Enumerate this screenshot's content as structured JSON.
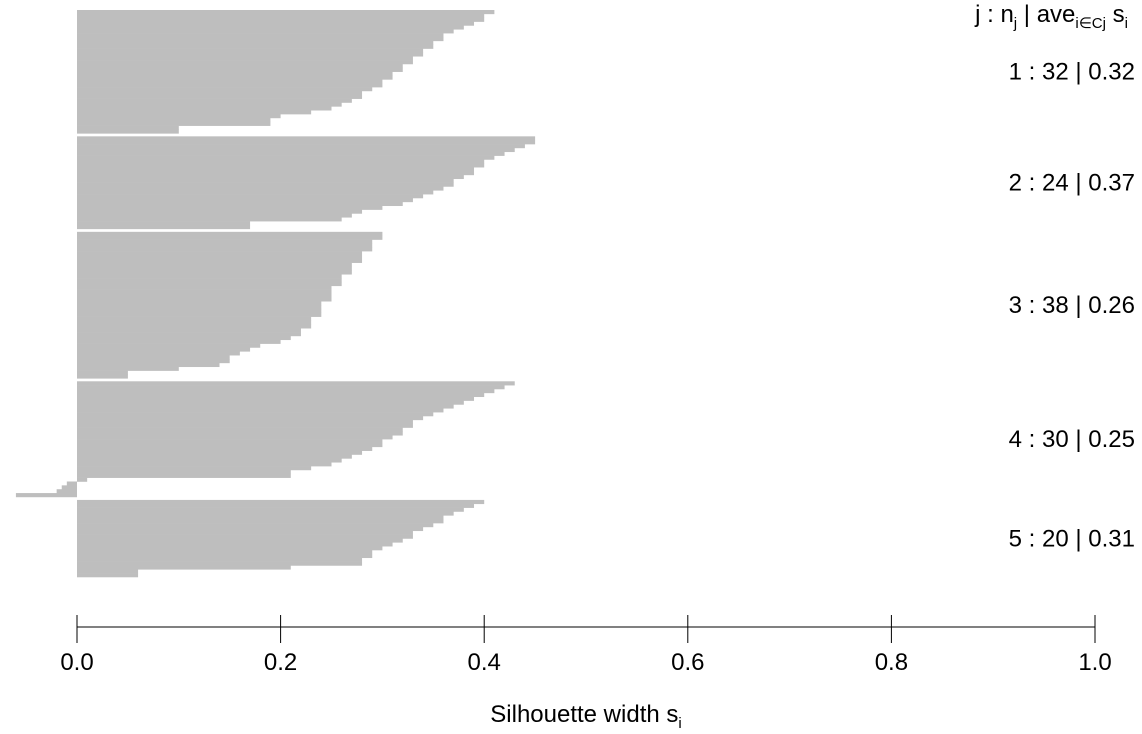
{
  "chart_data": {
    "type": "silhouette",
    "xlabel": "Silhouette width s",
    "xlabel_sub": "i",
    "legend_header": [
      "j :  n",
      "j",
      " | ave",
      "i∈Cj",
      " s",
      "i"
    ],
    "separators": [
      ":",
      "|"
    ],
    "xlim": [
      0,
      1
    ],
    "xticks": [
      {
        "value": 0,
        "label": "0.0"
      },
      {
        "value": 0.2,
        "label": "0.2"
      },
      {
        "value": 0.4,
        "label": "0.4"
      },
      {
        "value": 0.6,
        "label": "0.6"
      },
      {
        "value": 0.8,
        "label": "0.8"
      },
      {
        "value": 1,
        "label": "1.0"
      }
    ],
    "color": "#bebebe",
    "series": [
      {
        "name": "1",
        "n": 32,
        "ave": 0.32,
        "values": [
          0.41,
          0.4,
          0.4,
          0.39,
          0.38,
          0.37,
          0.36,
          0.36,
          0.35,
          0.35,
          0.34,
          0.34,
          0.33,
          0.33,
          0.32,
          0.32,
          0.31,
          0.31,
          0.3,
          0.3,
          0.29,
          0.28,
          0.28,
          0.27,
          0.26,
          0.25,
          0.23,
          0.2,
          0.19,
          0.19,
          0.1,
          0.1
        ]
      },
      {
        "name": "2",
        "n": 24,
        "ave": 0.37,
        "values": [
          0.45,
          0.45,
          0.44,
          0.43,
          0.42,
          0.41,
          0.4,
          0.4,
          0.39,
          0.39,
          0.38,
          0.37,
          0.37,
          0.36,
          0.35,
          0.34,
          0.33,
          0.32,
          0.3,
          0.28,
          0.27,
          0.26,
          0.17,
          0.17
        ]
      },
      {
        "name": "3",
        "n": 38,
        "ave": 0.26,
        "values": [
          0.3,
          0.3,
          0.29,
          0.29,
          0.29,
          0.28,
          0.28,
          0.28,
          0.27,
          0.27,
          0.27,
          0.26,
          0.26,
          0.26,
          0.25,
          0.25,
          0.25,
          0.25,
          0.24,
          0.24,
          0.24,
          0.24,
          0.23,
          0.23,
          0.23,
          0.22,
          0.22,
          0.21,
          0.2,
          0.18,
          0.17,
          0.16,
          0.15,
          0.15,
          0.14,
          0.1,
          0.05,
          0.05
        ]
      },
      {
        "name": "4",
        "n": 30,
        "ave": 0.25,
        "values": [
          0.43,
          0.42,
          0.41,
          0.4,
          0.39,
          0.38,
          0.37,
          0.36,
          0.35,
          0.34,
          0.33,
          0.33,
          0.32,
          0.32,
          0.31,
          0.3,
          0.3,
          0.29,
          0.28,
          0.27,
          0.26,
          0.25,
          0.23,
          0.21,
          0.21,
          0.01,
          -0.01,
          -0.015,
          -0.02,
          -0.06
        ]
      },
      {
        "name": "5",
        "n": 20,
        "ave": 0.31,
        "values": [
          0.4,
          0.39,
          0.38,
          0.37,
          0.36,
          0.36,
          0.35,
          0.34,
          0.33,
          0.33,
          0.32,
          0.31,
          0.3,
          0.29,
          0.29,
          0.28,
          0.28,
          0.21,
          0.06,
          0.06
        ]
      }
    ]
  }
}
